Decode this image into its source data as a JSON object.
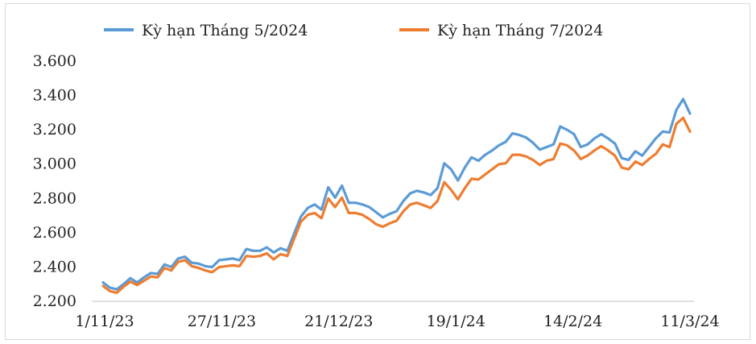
{
  "chart_data": {
    "type": "line",
    "ylim": [
      2200,
      3600
    ],
    "y_ticks": [
      "2.200",
      "2.400",
      "2.600",
      "2.800",
      "3.000",
      "3.200",
      "3.400",
      "3.600"
    ],
    "x_tick_labels": [
      "1/11/23",
      "27/11/23",
      "21/12/23",
      "19/1/24",
      "14/2/24",
      "11/3/24"
    ],
    "grid": false,
    "legend_position": "top",
    "series": [
      {
        "name": "Kỳ hạn Tháng 5/2024",
        "color": "#5b9bd5",
        "values": [
          2305,
          2275,
          2265,
          2295,
          2330,
          2305,
          2335,
          2360,
          2355,
          2410,
          2395,
          2445,
          2455,
          2420,
          2415,
          2400,
          2395,
          2435,
          2440,
          2445,
          2435,
          2500,
          2490,
          2490,
          2510,
          2480,
          2505,
          2490,
          2590,
          2690,
          2740,
          2760,
          2730,
          2860,
          2800,
          2870,
          2770,
          2770,
          2760,
          2745,
          2715,
          2685,
          2705,
          2720,
          2780,
          2825,
          2840,
          2830,
          2815,
          2855,
          3000,
          2965,
          2900,
          2975,
          3035,
          3015,
          3050,
          3075,
          3105,
          3125,
          3175,
          3165,
          3150,
          3120,
          3080,
          3095,
          3110,
          3215,
          3195,
          3170,
          3095,
          3110,
          3145,
          3170,
          3145,
          3115,
          3030,
          3020,
          3070,
          3045,
          3095,
          3145,
          3185,
          3180,
          3310,
          3375,
          3290
        ]
      },
      {
        "name": "Kỳ hạn Tháng 7/2024",
        "color": "#ed7d31",
        "values": [
          2285,
          2255,
          2245,
          2280,
          2310,
          2290,
          2315,
          2340,
          2335,
          2390,
          2375,
          2425,
          2435,
          2400,
          2390,
          2375,
          2365,
          2395,
          2400,
          2405,
          2400,
          2460,
          2455,
          2460,
          2475,
          2440,
          2470,
          2460,
          2560,
          2660,
          2700,
          2710,
          2680,
          2795,
          2745,
          2800,
          2710,
          2710,
          2700,
          2675,
          2645,
          2630,
          2650,
          2665,
          2720,
          2760,
          2770,
          2755,
          2740,
          2780,
          2890,
          2845,
          2790,
          2855,
          2910,
          2905,
          2935,
          2965,
          2995,
          3000,
          3050,
          3050,
          3040,
          3020,
          2990,
          3015,
          3025,
          3115,
          3105,
          3075,
          3025,
          3045,
          3075,
          3100,
          3075,
          3045,
          2975,
          2965,
          3010,
          2990,
          3025,
          3055,
          3110,
          3095,
          3230,
          3265,
          3185
        ]
      }
    ]
  }
}
